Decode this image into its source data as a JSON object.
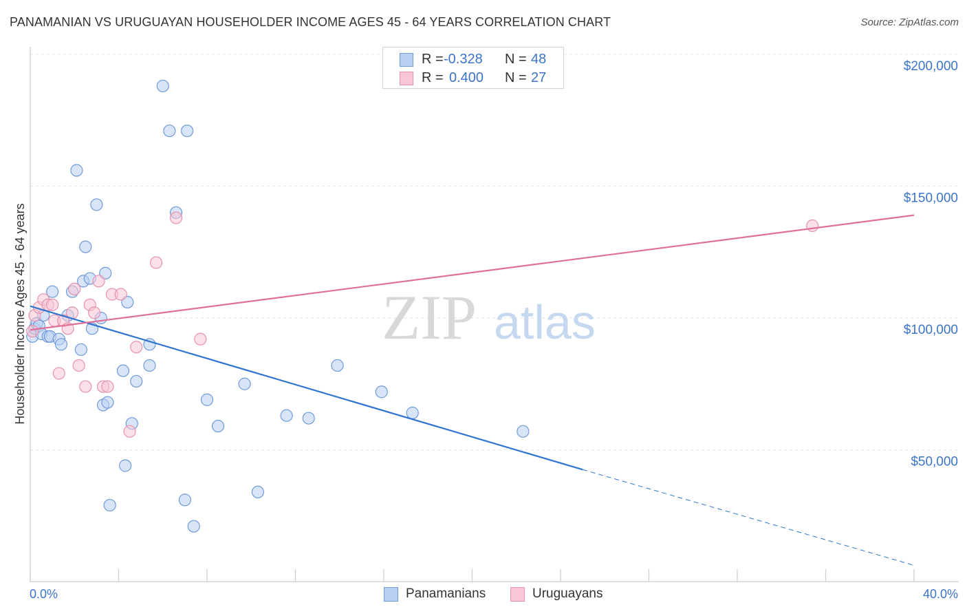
{
  "header": {
    "title": "PANAMANIAN VS URUGUAYAN HOUSEHOLDER INCOME AGES 45 - 64 YEARS CORRELATION CHART",
    "source": "Source: ZipAtlas.com"
  },
  "watermark": {
    "zip": "ZIP",
    "atlas": "atlas"
  },
  "colors": {
    "blue": "#2f74cf",
    "blue_fill": "#b8d0f2",
    "blue_stroke": "#6f9ad8",
    "pink": "#e07099",
    "pink_fill": "#f8c6d6",
    "pink_stroke": "#e592af",
    "grid": "#e3e3e3",
    "axis": "#cccccc",
    "tick_text": "#3b73c9"
  },
  "legend": {
    "rows": [
      {
        "r_label": "R =",
        "r_value": "-0.328",
        "n_label": "N =",
        "n_value": "48",
        "color": "#b8d0f2",
        "border": "#6f9ad8"
      },
      {
        "r_label": "R =",
        "r_value": "0.400",
        "n_label": "N =",
        "n_value": "27",
        "color": "#f8c6d6",
        "border": "#e592af"
      }
    ],
    "bottom": [
      {
        "label": "Panamanians",
        "color": "#b8d0f2",
        "border": "#6f9ad8"
      },
      {
        "label": "Uruguayans",
        "color": "#f8c6d6",
        "border": "#e592af"
      }
    ]
  },
  "chart_data": {
    "type": "scatter",
    "title": "PANAMANIAN VS URUGUAYAN HOUSEHOLDER INCOME AGES 45 - 64 YEARS CORRELATION CHART",
    "xlabel": "",
    "ylabel": "Householder Income Ages 45 - 64 years",
    "xlim": [
      0,
      40
    ],
    "ylim": [
      0,
      200000
    ],
    "x_tick_labels": [
      "0.0%",
      "40.0%"
    ],
    "y_ticks": [
      50000,
      100000,
      150000,
      200000
    ],
    "y_tick_labels": [
      "$50,000",
      "$100,000",
      "$150,000",
      "$200,000"
    ],
    "grid": true,
    "legend_position": "top-center",
    "series": [
      {
        "name": "Panamanians",
        "r": -0.328,
        "n": 48,
        "points": [
          [
            0.1,
            93000
          ],
          [
            0.2,
            96000
          ],
          [
            0.3,
            98000
          ],
          [
            0.4,
            97000
          ],
          [
            0.5,
            94000
          ],
          [
            0.6,
            101000
          ],
          [
            0.8,
            93000
          ],
          [
            0.9,
            93000
          ],
          [
            1.0,
            110000
          ],
          [
            1.3,
            92000
          ],
          [
            1.4,
            90000
          ],
          [
            1.7,
            101000
          ],
          [
            1.9,
            110000
          ],
          [
            2.1,
            156000
          ],
          [
            2.3,
            88000
          ],
          [
            2.4,
            114000
          ],
          [
            2.5,
            127000
          ],
          [
            2.7,
            115000
          ],
          [
            2.8,
            96000
          ],
          [
            3.0,
            143000
          ],
          [
            3.2,
            100000
          ],
          [
            3.3,
            67000
          ],
          [
            3.4,
            117000
          ],
          [
            3.5,
            68000
          ],
          [
            3.6,
            29000
          ],
          [
            4.2,
            80000
          ],
          [
            4.3,
            44000
          ],
          [
            4.4,
            106000
          ],
          [
            4.6,
            60000
          ],
          [
            4.8,
            76000
          ],
          [
            5.4,
            90000
          ],
          [
            5.4,
            82000
          ],
          [
            6.0,
            188000
          ],
          [
            6.3,
            171000
          ],
          [
            6.6,
            140000
          ],
          [
            7.0,
            31000
          ],
          [
            7.1,
            171000
          ],
          [
            7.4,
            21000
          ],
          [
            8.0,
            69000
          ],
          [
            8.5,
            59000
          ],
          [
            9.7,
            75000
          ],
          [
            10.3,
            34000
          ],
          [
            11.6,
            63000
          ],
          [
            12.6,
            62000
          ],
          [
            13.9,
            82000
          ],
          [
            15.9,
            72000
          ],
          [
            17.3,
            64000
          ],
          [
            22.3,
            57000
          ]
        ]
      },
      {
        "name": "Uruguayans",
        "r": 0.4,
        "n": 27,
        "points": [
          [
            0.1,
            95000
          ],
          [
            0.2,
            101000
          ],
          [
            0.4,
            104000
          ],
          [
            0.6,
            107000
          ],
          [
            0.8,
            105000
          ],
          [
            1.0,
            105000
          ],
          [
            1.1,
            99000
          ],
          [
            1.3,
            79000
          ],
          [
            1.5,
            99000
          ],
          [
            1.7,
            96000
          ],
          [
            1.9,
            102000
          ],
          [
            2.0,
            111000
          ],
          [
            2.2,
            82000
          ],
          [
            2.5,
            74000
          ],
          [
            2.7,
            105000
          ],
          [
            2.9,
            102000
          ],
          [
            3.1,
            114000
          ],
          [
            3.3,
            74000
          ],
          [
            3.5,
            74000
          ],
          [
            3.7,
            109000
          ],
          [
            4.1,
            109000
          ],
          [
            4.5,
            57000
          ],
          [
            4.8,
            89000
          ],
          [
            5.7,
            121000
          ],
          [
            6.6,
            138000
          ],
          [
            7.7,
            92000
          ],
          [
            35.4,
            135000
          ]
        ]
      }
    ],
    "trend_lines": [
      {
        "series": "Panamanians",
        "start": [
          0,
          104500
        ],
        "solid_end": [
          25,
          42500
        ],
        "dashed_end": [
          40,
          6200
        ]
      },
      {
        "series": "Uruguayans",
        "start": [
          0,
          95500
        ],
        "end": [
          40,
          139000
        ]
      }
    ]
  }
}
